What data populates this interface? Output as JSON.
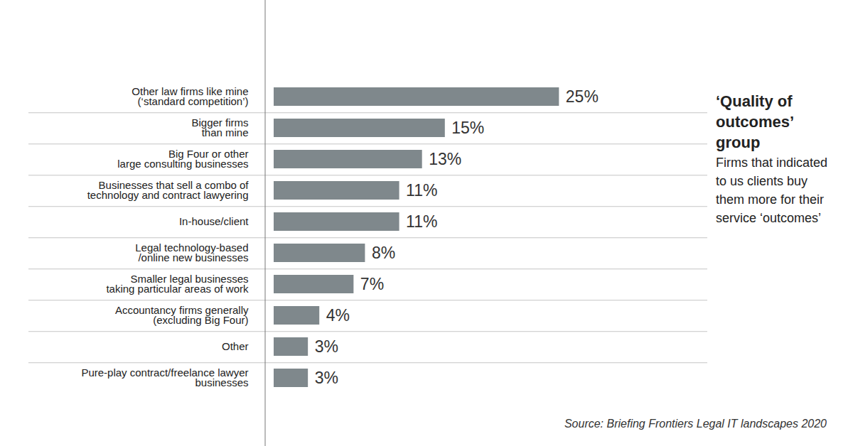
{
  "chart_data": {
    "type": "bar",
    "orientation": "horizontal",
    "title": "‘Quality of outcomes’ group",
    "subtitle": "Firms that indicated to us clients buy them more for their service ‘outcomes’",
    "caption": "Source: Briefing Frontiers Legal IT landscapes 2020",
    "categories": [
      "Other law firms like mine\n(‘standard competition’)",
      "Bigger firms\nthan mine",
      "Big Four or other\nlarge consulting businesses",
      "Businesses that sell a combo of\ntechnology and contract lawyering",
      "In-house/client",
      "Legal technology-based\n/online new businesses",
      "Smaller legal businesses\ntaking particular areas of work",
      "Accountancy firms generally\n(excluding Big Four)",
      "Other",
      "Pure-play contract/freelance lawyer\nbusinesses"
    ],
    "values": [
      25,
      15,
      13,
      11,
      11,
      8,
      7,
      4,
      3,
      3
    ],
    "value_labels": [
      "25%",
      "15%",
      "13%",
      "11%",
      "11%",
      "8%",
      "7%",
      "4%",
      "3%",
      "3%"
    ],
    "color": "#7f888c",
    "xlim": [
      0,
      38
    ],
    "tick_labels": false,
    "data_labels": true,
    "grid": false
  }
}
